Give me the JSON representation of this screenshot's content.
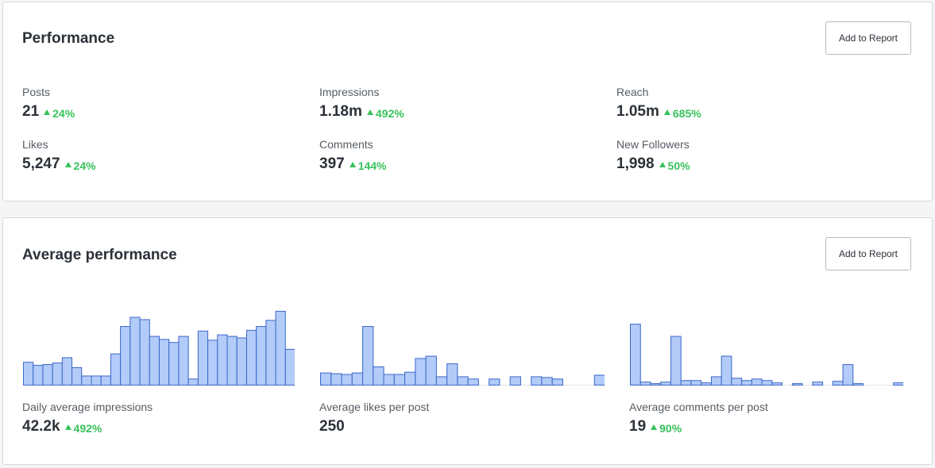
{
  "performance": {
    "title": "Performance",
    "add_button": "Add to Report",
    "metrics": [
      {
        "label": "Posts",
        "value": "21",
        "change": "24%"
      },
      {
        "label": "Impressions",
        "value": "1.18m",
        "change": "492%"
      },
      {
        "label": "Reach",
        "value": "1.05m",
        "change": "685%"
      },
      {
        "label": "Likes",
        "value": "5,247",
        "change": "24%"
      },
      {
        "label": "Comments",
        "value": "397",
        "change": "144%"
      },
      {
        "label": "New Followers",
        "value": "1,998",
        "change": "50%"
      }
    ]
  },
  "average": {
    "title": "Average performance",
    "add_button": "Add to Report",
    "metrics": [
      {
        "label": "Daily average impressions",
        "value": "42.2k",
        "change": "492%"
      },
      {
        "label": "Average likes per post",
        "value": "250",
        "change": ""
      },
      {
        "label": "Average comments per post",
        "value": "19",
        "change": "90%"
      }
    ]
  },
  "colors": {
    "accent_green": "#37c25b",
    "bar_fill": "#b2cbf8",
    "bar_stroke": "#3b67c9"
  },
  "chart_data": [
    {
      "type": "bar",
      "name": "impressions",
      "values": [
        30,
        26,
        27,
        29,
        36,
        23,
        12,
        12,
        12,
        41,
        77,
        89,
        86,
        64,
        60,
        56,
        64,
        8,
        71,
        59,
        66,
        64,
        62,
        72,
        77,
        85,
        97,
        47
      ]
    },
    {
      "type": "bar",
      "name": "likes",
      "values": [
        16,
        15,
        14,
        16,
        77,
        24,
        14,
        14,
        17,
        35,
        38,
        11,
        28,
        11,
        8,
        0,
        8,
        0,
        11,
        0,
        11,
        10,
        8,
        0,
        0,
        0,
        13
      ]
    },
    {
      "type": "bar",
      "name": "comments",
      "values": [
        80,
        4,
        2,
        4,
        64,
        6,
        6,
        3,
        11,
        38,
        9,
        6,
        8,
        6,
        3,
        0,
        2,
        0,
        4,
        0,
        5,
        27,
        2,
        0,
        0,
        0,
        3
      ]
    }
  ]
}
